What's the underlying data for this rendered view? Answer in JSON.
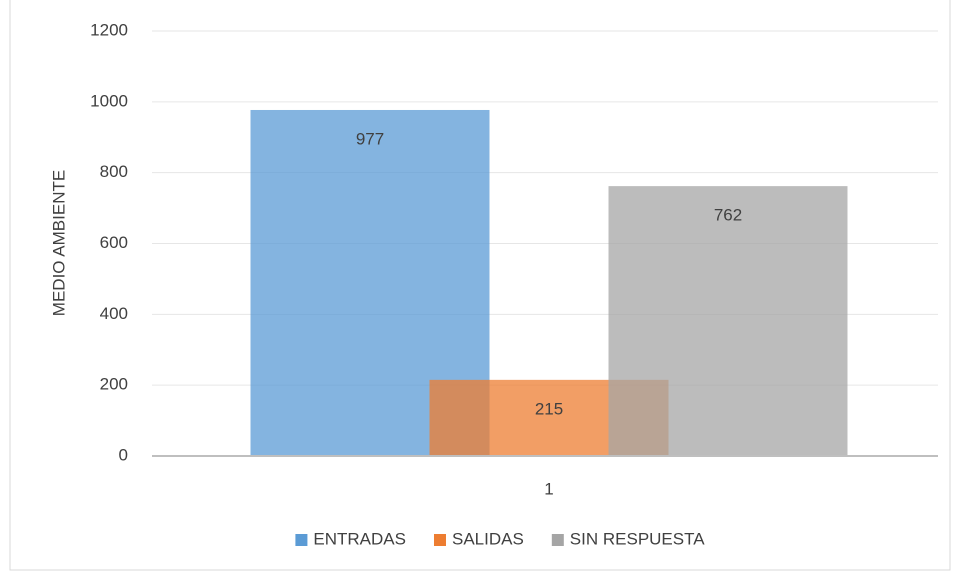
{
  "chart_data": {
    "type": "bar",
    "categories": [
      "1"
    ],
    "y_label": "MEDIO AMBIENTE",
    "series": [
      {
        "name": "ENTRADAS",
        "color": "#5b9bd5",
        "values": [
          977
        ]
      },
      {
        "name": "SALIDAS",
        "color": "#ed7d31",
        "values": [
          215
        ]
      },
      {
        "name": "SIN RESPUESTA",
        "color": "#a5a5a5",
        "values": [
          762
        ]
      }
    ],
    "ylim": [
      0,
      1200
    ],
    "yticks": [
      0,
      200,
      400,
      600,
      800,
      1000,
      1200
    ],
    "grid": true,
    "legend": "bottom"
  }
}
